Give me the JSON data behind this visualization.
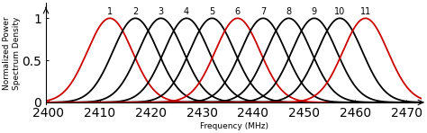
{
  "channel_centers": [
    2412,
    2417,
    2422,
    2427,
    2432,
    2437,
    2442,
    2447,
    2452,
    2457,
    2462
  ],
  "channel_labels": [
    "1",
    "2",
    "3",
    "4",
    "5",
    "6",
    "7",
    "8",
    "9",
    "10",
    "11"
  ],
  "red_channels": [
    0,
    5,
    10
  ],
  "sigma": 4.4,
  "xmin": 2399.5,
  "xmax": 2473,
  "ymin": -0.02,
  "ymax": 1.18,
  "xlabel": "Frequency (MHz)",
  "ylabel": "Normalized Power\nSpectrum Density",
  "xticks": [
    2400,
    2410,
    2420,
    2430,
    2440,
    2450,
    2460,
    2470
  ],
  "yticks": [
    0,
    0.5,
    1
  ],
  "line_color_black": "#000000",
  "line_color_red": "#cc0000",
  "linewidth": 1.3,
  "background_color": "#ffffff",
  "channel_label_fontsize": 7.0,
  "axis_label_fontsize": 6.5,
  "tick_fontsize": 6.0
}
